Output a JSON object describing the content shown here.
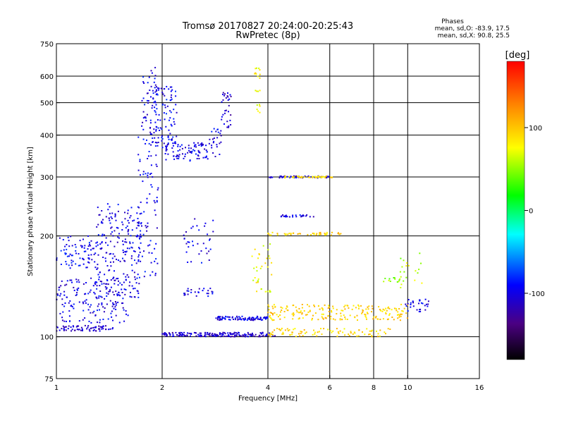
{
  "chart_data": {
    "type": "scatter",
    "title": "Tromsø 20170827 20:24:00-20:25:43",
    "subtitle": "RwPretec (8p)",
    "xlabel": "Frequency [MHz]",
    "ylabel": "Stationary phase Virtual Height [km]",
    "x_scale": "log",
    "y_scale": "log",
    "xlim": [
      1,
      16
    ],
    "ylim": [
      75,
      750
    ],
    "x_ticks": [
      1,
      2,
      4,
      6,
      8,
      10,
      16
    ],
    "x_tick_labels": [
      "1",
      "2",
      "4",
      "6",
      "8",
      "10",
      "16"
    ],
    "y_ticks": [
      75,
      100,
      200,
      300,
      400,
      500,
      600,
      750
    ],
    "y_tick_labels": [
      "75",
      "100",
      "200",
      "300",
      "400",
      "500",
      "600",
      "750"
    ],
    "x_gridlines": [
      2,
      4,
      6,
      8,
      10
    ],
    "y_gridlines": [
      100,
      200,
      300,
      400,
      500,
      600
    ],
    "grid": true,
    "stats": {
      "heading": "Phases",
      "line_o": "mean, sd,O: -83.9, 17.5",
      "line_x": "mean, sd,X: 90.8, 25.5"
    },
    "colorbar": {
      "label": "[deg]",
      "range": [
        -180,
        180
      ],
      "ticks": [
        100,
        0,
        -100
      ],
      "tick_labels": [
        "100",
        "0",
        "-100"
      ],
      "colors": [
        "#ff0000",
        "#ff7f00",
        "#ffff00",
        "#00ff00",
        "#00ffff",
        "#0000ff",
        "#4b0082",
        "#000000"
      ]
    },
    "clusters": [
      {
        "x": [
          1.0,
          1.3
        ],
        "y": [
          160,
          200
        ],
        "phase": -95,
        "n": 80
      },
      {
        "x": [
          1.3,
          1.75
        ],
        "y": [
          130,
          250
        ],
        "phase": -100,
        "n": 220
      },
      {
        "x": [
          1.0,
          1.6
        ],
        "y": [
          110,
          150
        ],
        "phase": -100,
        "n": 160
      },
      {
        "x": [
          1.0,
          1.45
        ],
        "y": [
          104,
          108
        ],
        "phase": -110,
        "n": 70
      },
      {
        "x": [
          1.7,
          1.95
        ],
        "y": [
          150,
          400
        ],
        "phase": -95,
        "n": 90
      },
      {
        "x": [
          1.75,
          1.95
        ],
        "y": [
          400,
          640
        ],
        "phase": -100,
        "n": 60
      },
      {
        "x": [
          1.9,
          2.2
        ],
        "y": [
          380,
          560
        ],
        "phase": -95,
        "n": 80
      },
      {
        "x": [
          2.0,
          2.7
        ],
        "y": [
          335,
          380
        ],
        "phase": -100,
        "n": 90
      },
      {
        "x": [
          2.7,
          2.95
        ],
        "y": [
          340,
          420
        ],
        "phase": -100,
        "n": 25
      },
      {
        "x": [
          2.95,
          3.15
        ],
        "y": [
          420,
          540
        ],
        "phase": -110,
        "n": 30
      },
      {
        "x": [
          3.65,
          3.8
        ],
        "y": [
          450,
          640
        ],
        "phase": 80,
        "n": 20
      },
      {
        "x": [
          2.0,
          4.2
        ],
        "y": [
          100,
          103
        ],
        "phase": -110,
        "n": 180
      },
      {
        "x": [
          2.8,
          4.0
        ],
        "y": [
          112,
          115
        ],
        "phase": -100,
        "n": 90
      },
      {
        "x": [
          4.0,
          6.0
        ],
        "y": [
          298,
          302
        ],
        "phase": -110,
        "n": 40
      },
      {
        "x": [
          4.4,
          6.2
        ],
        "y": [
          298,
          302
        ],
        "phase": 90,
        "n": 40
      },
      {
        "x": [
          4.3,
          5.4
        ],
        "y": [
          228,
          231
        ],
        "phase": -100,
        "n": 25
      },
      {
        "x": [
          4.0,
          6.5
        ],
        "y": [
          201,
          205
        ],
        "phase": 95,
        "n": 45
      },
      {
        "x": [
          3.6,
          4.1
        ],
        "y": [
          135,
          195
        ],
        "phase": 75,
        "n": 35
      },
      {
        "x": [
          4.0,
          10.0
        ],
        "y": [
          112,
          125
        ],
        "phase": 95,
        "n": 200
      },
      {
        "x": [
          4.0,
          9.0
        ],
        "y": [
          100,
          106
        ],
        "phase": 90,
        "n": 90
      },
      {
        "x": [
          2.3,
          2.8
        ],
        "y": [
          165,
          230
        ],
        "phase": -100,
        "n": 35
      },
      {
        "x": [
          2.3,
          2.8
        ],
        "y": [
          132,
          140
        ],
        "phase": -100,
        "n": 25
      },
      {
        "x": [
          9.8,
          11.5
        ],
        "y": [
          118,
          130
        ],
        "phase": -100,
        "n": 30
      },
      {
        "x": [
          9.5,
          11.0
        ],
        "y": [
          140,
          185
        ],
        "phase": 60,
        "n": 20
      },
      {
        "x": [
          8.5,
          9.5
        ],
        "y": [
          145,
          150
        ],
        "phase": 50,
        "n": 12
      }
    ]
  }
}
